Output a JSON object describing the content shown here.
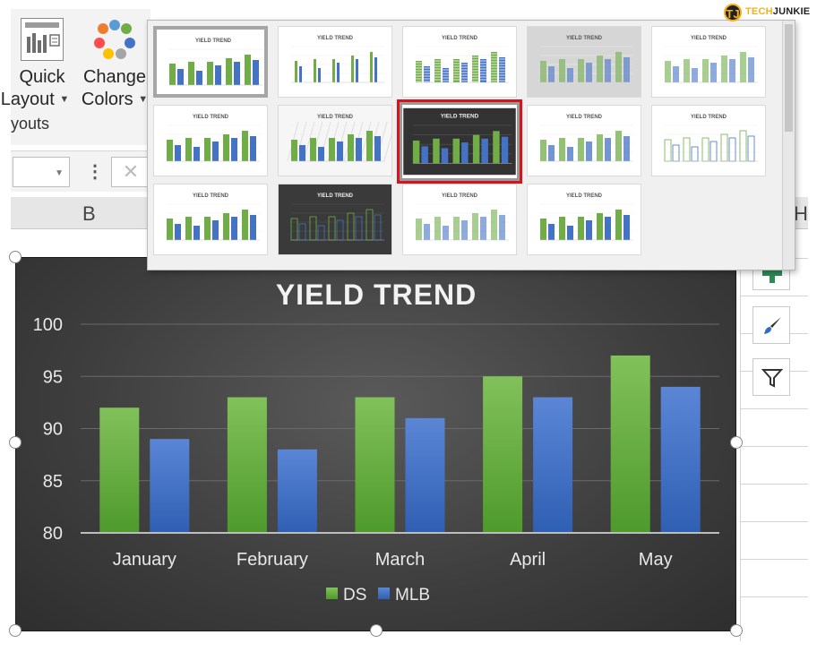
{
  "ribbon": {
    "quick_layout": {
      "line1": "Quick",
      "line2": "Layout"
    },
    "change_colors": {
      "line1": "Change",
      "line2": "Colors"
    },
    "group_label": "youts"
  },
  "column_headers": {
    "b": "B",
    "h": "H"
  },
  "logo": {
    "part1": "TECH",
    "part2": "JUNKIE",
    "badge": "TJ"
  },
  "gallery": {
    "thumb_title": "YIELD TREND",
    "selected_index": 7,
    "rows": 3,
    "cols": 5,
    "count": 14
  },
  "side_buttons": [
    {
      "name": "chart-elements",
      "icon": "plus-icon"
    },
    {
      "name": "chart-styles",
      "icon": "paintbrush-icon"
    },
    {
      "name": "chart-filters",
      "icon": "filter-icon"
    }
  ],
  "colors": {
    "ds": "#70ad47",
    "mlb": "#4472c4",
    "chart_bg": "#3d3d3d",
    "selection": "#d9131b"
  },
  "chart_data": {
    "type": "bar",
    "title": "YIELD TREND",
    "categories": [
      "January",
      "February",
      "March",
      "April",
      "May"
    ],
    "series": [
      {
        "name": "DS",
        "values": [
          92,
          93,
          93,
          95,
          97
        ]
      },
      {
        "name": "MLB",
        "values": [
          89,
          88,
          91,
          93,
          94
        ]
      }
    ],
    "ylim": [
      80,
      100
    ],
    "yticks": [
      80,
      85,
      90,
      95,
      100
    ],
    "grid": true,
    "legend": "bottom"
  }
}
